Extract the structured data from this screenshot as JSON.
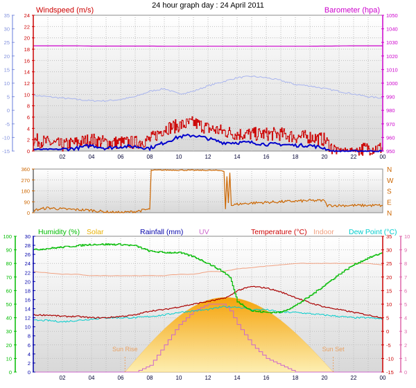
{
  "title": "24 hour graph day : 24 April 2011",
  "colors": {
    "wind": "#cc0000",
    "gust": "#cc0000",
    "windavg": "#0000cc",
    "baro": "#cc00cc",
    "temp_axis": "#cc0000",
    "temp_line": "#aa0000",
    "hum": "#00bb00",
    "dew": "#00cccc",
    "indoor": "#f0a080",
    "uv": "#cc66cc",
    "solar": "#e8b000",
    "rain": "#0000aa",
    "dir": "#cc6600"
  },
  "time_ticks": [
    "02",
    "04",
    "06",
    "08",
    "10",
    "12",
    "14",
    "16",
    "18",
    "20",
    "22",
    "00"
  ],
  "chart_data": [
    {
      "type": "line",
      "panel": "wind-barometer",
      "left_title": "Windspeed (m/s)",
      "right_title": "Barometer (hpa)",
      "outer_left_ticks": [
        "35",
        "30",
        "25",
        "20",
        "15",
        "10",
        "5",
        "0",
        "-5",
        "-10",
        "-15"
      ],
      "wind_ticks": [
        "24",
        "22",
        "20",
        "18",
        "16",
        "14",
        "12",
        "10",
        "8",
        "6",
        "4",
        "2",
        "0"
      ],
      "baro_ticks": [
        "1050",
        "1040",
        "1030",
        "1020",
        "1010",
        "1000",
        "990",
        "980",
        "970",
        "960",
        "950"
      ],
      "x_hours": [
        0,
        1,
        2,
        3,
        4,
        5,
        6,
        7,
        8,
        9,
        10,
        11,
        12,
        13,
        14,
        15,
        16,
        17,
        18,
        19,
        20,
        20.5,
        21,
        22,
        23,
        24
      ],
      "series": [
        {
          "name": "Windspeed gust",
          "axis": "wind",
          "values": [
            2,
            1.5,
            1,
            1.5,
            2,
            1.5,
            1.5,
            1.5,
            2,
            4,
            4.5,
            5,
            4,
            3.5,
            3,
            3,
            3,
            3,
            2.5,
            2.5,
            2,
            0.5,
            0.2,
            0.2,
            0.5,
            0.5
          ]
        },
        {
          "name": "Windspeed average",
          "axis": "wind",
          "values": [
            0.3,
            0.3,
            0.3,
            0.5,
            1,
            0.5,
            0.8,
            0.8,
            0.5,
            1.5,
            2.5,
            2.8,
            2.2,
            1.5,
            1.5,
            1.5,
            1.2,
            1.2,
            1,
            1,
            0.5,
            0,
            0,
            0,
            0,
            0
          ]
        },
        {
          "name": "Barometer",
          "axis": "baro",
          "values": [
            1027.5,
            1027.5,
            1027.5,
            1027.5,
            1027.3,
            1027.3,
            1027.3,
            1027.3,
            1027.3,
            1027.2,
            1027.2,
            1027.2,
            1027.2,
            1027.2,
            1027.2,
            1027.2,
            1027.2,
            1027.2,
            1027.2,
            1027.2,
            1027.3,
            1027.3,
            1027.4,
            1027.5,
            1027.5,
            1027.5
          ]
        },
        {
          "name": "Temperature trace",
          "axis": "outer",
          "values": [
            5.5,
            5,
            4.5,
            4,
            3.5,
            3.5,
            4,
            5,
            7,
            8,
            6,
            7,
            9,
            10.5,
            12,
            12.5,
            12,
            11,
            9.5,
            9,
            8,
            7.5,
            7,
            6,
            5,
            4.5
          ]
        }
      ]
    },
    {
      "type": "line",
      "panel": "wind-direction",
      "left_ticks": [
        "360",
        "270",
        "180",
        "90",
        "0"
      ],
      "right_ticks": [
        "N",
        "W",
        "S",
        "E",
        "N"
      ],
      "series": [
        {
          "name": "Wind direction",
          "points": [
            [
              0,
              20
            ],
            [
              1,
              40
            ],
            [
              2,
              30
            ],
            [
              3,
              25
            ],
            [
              4,
              20
            ],
            [
              5,
              5
            ],
            [
              6,
              0
            ],
            [
              7,
              10
            ],
            [
              8,
              30
            ],
            [
              8.1,
              350
            ],
            [
              9,
              352
            ],
            [
              10,
              352
            ],
            [
              11,
              350
            ],
            [
              12,
              350
            ],
            [
              13,
              348
            ],
            [
              13.1,
              340
            ],
            [
              13.2,
              30
            ],
            [
              13.3,
              300
            ],
            [
              13.4,
              80
            ],
            [
              13.5,
              330
            ],
            [
              13.6,
              60
            ],
            [
              14,
              70
            ],
            [
              15,
              80
            ],
            [
              16,
              85
            ],
            [
              17,
              90
            ],
            [
              18,
              95
            ],
            [
              19,
              100
            ],
            [
              20,
              100
            ],
            [
              20.2,
              60
            ],
            [
              21,
              60
            ],
            [
              22,
              60
            ],
            [
              23,
              60
            ],
            [
              24,
              60
            ]
          ]
        }
      ]
    },
    {
      "type": "line",
      "panel": "temperature-humidity",
      "legend": [
        "Humidity (%)",
        "Solar",
        "Rainfall (mm)",
        "UV",
        "Temperature (°C)",
        "Indoor",
        "Dew Point (°C)"
      ],
      "humidity_ticks": [
        "100",
        "90",
        "80",
        "70",
        "60",
        "50",
        "40",
        "30",
        "20",
        "10",
        "0"
      ],
      "rain_ticks": [
        "30",
        "28",
        "26",
        "24",
        "22",
        "20",
        "18",
        "16",
        "14",
        "12",
        "10",
        "8",
        "6",
        "4",
        "2",
        "0"
      ],
      "temp_ticks": [
        "35",
        "30",
        "25",
        "20",
        "15",
        "10",
        "5",
        "0",
        "-5",
        "-10",
        "-15"
      ],
      "uv_ticks": [
        "10",
        "9",
        "8",
        "7",
        "6",
        "5",
        "4",
        "3",
        "2",
        "1",
        "0"
      ],
      "annotations": [
        "Sun Rise",
        "Sun Set"
      ],
      "sunrise_label": "Sun Rise",
      "sunset_label": "Sun Set",
      "sunrise_hour": 6.3,
      "sunset_hour": 20.6,
      "x_hours": [
        0,
        1,
        2,
        3,
        4,
        5,
        6,
        7,
        8,
        9,
        10,
        11,
        12,
        13,
        13.5,
        14,
        15,
        16,
        17,
        18,
        19,
        20,
        21,
        22,
        23,
        24
      ],
      "series": [
        {
          "name": "Humidity (%)",
          "axis": "humidity",
          "values": [
            90,
            91,
            92,
            93,
            94,
            94,
            94,
            93,
            89,
            88,
            88,
            85,
            80,
            74,
            70,
            52,
            45,
            44,
            44,
            49,
            56,
            64,
            72,
            79,
            84,
            88
          ]
        },
        {
          "name": "Temperature (°C)",
          "axis": "temp",
          "values": [
            6,
            6,
            5.5,
            5.5,
            5,
            5,
            5.5,
            6,
            7.5,
            8,
            9,
            10,
            11,
            12,
            13,
            15,
            16.5,
            16,
            14.5,
            12.5,
            10.5,
            9,
            8,
            7,
            6,
            5
          ]
        },
        {
          "name": "Indoor",
          "axis": "temp",
          "values": [
            22,
            21.5,
            21,
            21,
            20.5,
            20.5,
            20.5,
            20.5,
            20.5,
            20.5,
            21,
            21,
            22,
            22,
            22.5,
            23,
            23.5,
            24,
            24.5,
            25,
            25,
            25,
            25,
            25,
            25,
            24.5
          ]
        },
        {
          "name": "Dew Point (°C)",
          "axis": "temp",
          "values": [
            4,
            4,
            3.5,
            4,
            4.5,
            5,
            5,
            5,
            5.5,
            6,
            7,
            7.5,
            8,
            9,
            9,
            9,
            8,
            8,
            7,
            7,
            6.5,
            6,
            5.5,
            5,
            5,
            4.5
          ]
        },
        {
          "name": "UV",
          "axis": "uv",
          "values": [
            0,
            0,
            0,
            0,
            0,
            0,
            0,
            0,
            0.5,
            2,
            3.5,
            4.5,
            5,
            5,
            4.5,
            3.5,
            2,
            1,
            0.5,
            0,
            0,
            0,
            0,
            0,
            0,
            0
          ]
        }
      ],
      "solar": {
        "start_hour": 6.3,
        "peak_hour": 13.2,
        "end_hour": 20.6,
        "peak_on_temp_axis": 12.5
      }
    }
  ]
}
